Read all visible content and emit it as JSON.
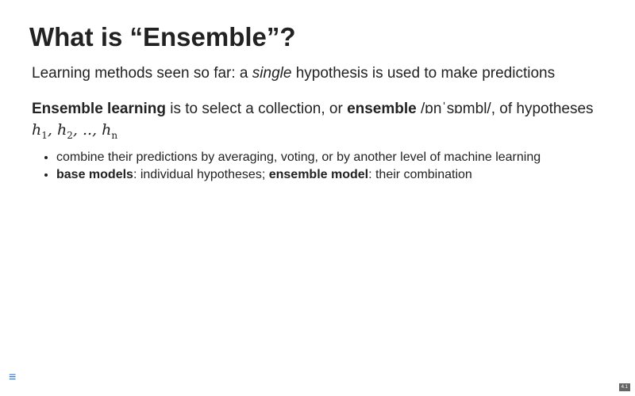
{
  "slide": {
    "title": "What is “Ensemble”?",
    "para1": {
      "before": "Learning methods seen so far: a ",
      "emph": "single",
      "after": " hypothesis is used to make predictions"
    },
    "para2": {
      "term1": "Ensemble learning",
      "text1": " is to select a collection, or ",
      "term2": "ensemble",
      "text2": " /ɒnˈsɒmbl/, of hypotheses",
      "math": {
        "h1": "h",
        "s1": "1",
        "sep1": ", ",
        "h2": "h",
        "s2": "2",
        "sep2": ", .., ",
        "hn": "h",
        "sn": "n"
      }
    },
    "bullets": {
      "b1": "combine their predictions by averaging, voting, or by another level of machine learning",
      "b2_term1": "base models",
      "b2_text1": ": individual hypotheses; ",
      "b2_term2": "ensemble model",
      "b2_text2": ": their combination"
    },
    "menu_icon": "menu-icon",
    "menu_glyph": "≡",
    "slide_number": "4.1"
  }
}
